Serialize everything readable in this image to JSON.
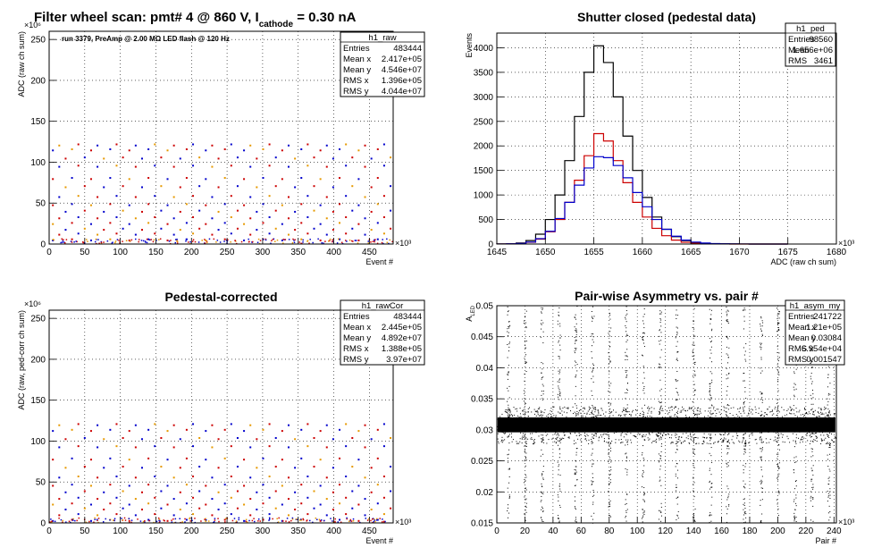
{
  "page_title": {
    "main": "Filter wheel scan: pmt#   4 @   860 V, I",
    "sub": "cathode",
    "tail": "  = 0.30 nA"
  },
  "chart_data": [
    {
      "id": "h1_raw",
      "type": "scatter",
      "title": "",
      "xlabel": "Event #",
      "ylabel": "ADC (raw ch sum)",
      "x_exponent": "×10³",
      "y_exponent": "×10⁶",
      "xlim": [
        0,
        483.444
      ],
      "ylim": [
        0,
        260
      ],
      "xticks": [
        0,
        50,
        100,
        150,
        200,
        250,
        300,
        350,
        400,
        450
      ],
      "yticks": [
        0,
        50,
        100,
        150,
        200,
        250
      ],
      "grid": true,
      "annotation": "run 3379, PreAmp @ 2.00 MΩ   LED flash @  120 Hz",
      "levels": [
        5,
        12,
        18,
        25,
        32,
        40,
        48,
        58,
        70,
        80,
        95,
        105,
        115,
        121
      ],
      "steps": 18,
      "stats": {
        "name": "h1_raw",
        "rows": [
          [
            "Entries",
            "483444"
          ],
          [
            "Mean x",
            "2.417e+05"
          ],
          [
            "Mean y",
            "4.546e+07"
          ],
          [
            "RMS x",
            "1.396e+05"
          ],
          [
            "RMS y",
            "4.044e+07"
          ]
        ]
      }
    },
    {
      "id": "h1_ped",
      "type": "line",
      "title": "Shutter closed (pedestal data)",
      "xlabel": "ADC (raw ch sum)",
      "ylabel": "Events",
      "x_exponent": "×10³",
      "xlim": [
        1645,
        1680
      ],
      "ylim": [
        0,
        4300
      ],
      "xticks": [
        1645,
        1650,
        1655,
        1660,
        1665,
        1670,
        1675,
        1680
      ],
      "yticks": [
        0,
        500,
        1000,
        1500,
        2000,
        2500,
        3000,
        3500,
        4000
      ],
      "grid": true,
      "x": [
        1645.5,
        1646.5,
        1647.5,
        1648.5,
        1649.5,
        1650.5,
        1651.5,
        1652.5,
        1653.5,
        1654.5,
        1655.5,
        1656.5,
        1657.5,
        1658.5,
        1659.5,
        1660.5,
        1661.5,
        1662.5,
        1663.5,
        1664.5,
        1665.5,
        1666.5,
        1667.5,
        1668.5,
        1669.5,
        1670.5,
        1671.5,
        1672.5,
        1673.5,
        1674.5
      ],
      "series": [
        {
          "color": "#000000",
          "values": [
            2,
            5,
            20,
            70,
            200,
            500,
            1000,
            1700,
            2600,
            3500,
            4040,
            3700,
            3000,
            2200,
            1500,
            950,
            550,
            300,
            150,
            70,
            30,
            15,
            8,
            4,
            2,
            1,
            0,
            0,
            0,
            0
          ]
        },
        {
          "color": "#cc0000",
          "values": [
            1,
            3,
            10,
            35,
            100,
            250,
            500,
            850,
            1300,
            1800,
            2250,
            2100,
            1700,
            1250,
            850,
            550,
            320,
            170,
            80,
            35,
            15,
            6,
            3,
            1,
            0,
            0,
            0,
            0,
            0,
            0
          ]
        },
        {
          "color": "#0000cc",
          "values": [
            1,
            4,
            12,
            40,
            110,
            260,
            520,
            850,
            1200,
            1550,
            1780,
            1760,
            1600,
            1350,
            1050,
            760,
            500,
            300,
            160,
            80,
            40,
            20,
            10,
            5,
            2,
            1,
            0,
            0,
            0,
            0
          ]
        }
      ],
      "stats": {
        "name": "h1_ped",
        "rows": [
          [
            "Entries",
            "98560"
          ],
          [
            "Mean",
            "1.656e+06"
          ],
          [
            "RMS",
            "3461"
          ]
        ]
      }
    },
    {
      "id": "h1_rawCor",
      "type": "scatter",
      "title": "Pedestal-corrected",
      "xlabel": "Event #",
      "ylabel": "ADC (raw, ped-corr ch sum)",
      "x_exponent": "×10³",
      "y_exponent": "×10⁶",
      "xlim": [
        0,
        483.444
      ],
      "ylim": [
        0,
        260
      ],
      "xticks": [
        0,
        50,
        100,
        150,
        200,
        250,
        300,
        350,
        400,
        450
      ],
      "yticks": [
        0,
        50,
        100,
        150,
        200,
        250
      ],
      "grid": true,
      "levels": [
        3,
        10,
        17,
        23,
        30,
        38,
        46,
        56,
        68,
        78,
        93,
        103,
        113,
        120
      ],
      "steps": 18,
      "stats": {
        "name": "h1_rawCor",
        "rows": [
          [
            "Entries",
            "483444"
          ],
          [
            "Mean x",
            "2.445e+05"
          ],
          [
            "Mean y",
            "4.892e+07"
          ],
          [
            "RMS x",
            "1.388e+05"
          ],
          [
            "RMS y",
            "3.97e+07"
          ]
        ]
      }
    },
    {
      "id": "h1_asym_my",
      "type": "scatter",
      "title": "Pair-wise Asymmetry vs. pair #",
      "xlabel": "Pair #",
      "ylabel": "A",
      "ylabel_sub": "LED",
      "x_exponent": "×10³",
      "xlim": [
        0,
        241.722
      ],
      "ylim": [
        0.015,
        0.05
      ],
      "xticks": [
        0,
        20,
        40,
        60,
        80,
        100,
        120,
        140,
        160,
        180,
        200,
        220,
        240
      ],
      "yticks": [
        0.015,
        0.02,
        0.025,
        0.03,
        0.035,
        0.04,
        0.045,
        0.05
      ],
      "grid": true,
      "band_center": 0.0308,
      "band_halfwidth": 0.0012,
      "stats": {
        "name": "h1_asym_my",
        "rows": [
          [
            "Entries",
            "241722"
          ],
          [
            "Mean x",
            "1.21e+05"
          ],
          [
            "Mean y",
            "0.03084"
          ],
          [
            "RMS x",
            "6.954e+04"
          ],
          [
            "RMS y",
            "0.001547"
          ]
        ]
      }
    }
  ]
}
